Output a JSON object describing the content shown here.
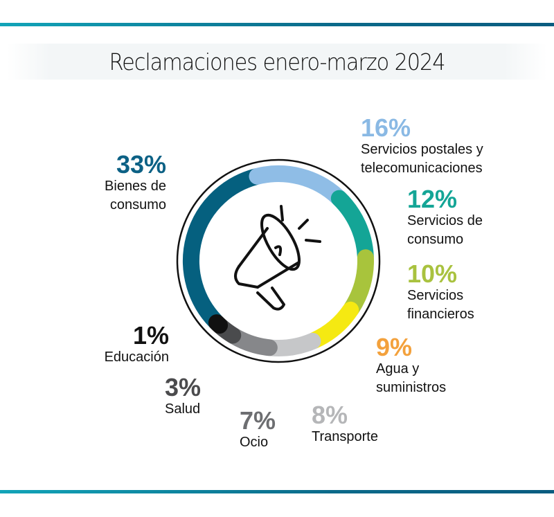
{
  "chart_data": {
    "type": "pie",
    "variant": "donut",
    "title": "Reclamaciones enero-marzo 2024",
    "unit": "%",
    "slices": [
      {
        "label": "Servicios postales y telecomunicaciones",
        "value": 16,
        "pct": "16%",
        "color": "#8fbde6",
        "label_color": "#8ab9e4"
      },
      {
        "label": "Servicios de consumo",
        "value": 12,
        "pct": "12%",
        "color": "#14a596",
        "label_color": "#14a596"
      },
      {
        "label": "Servicios financieros",
        "value": 10,
        "pct": "10%",
        "color": "#a8c43c",
        "label_color": "#a9c23f"
      },
      {
        "label": "Agua y suministros",
        "value": 9,
        "pct": "9%",
        "color": "#f5e912",
        "label_color": "#f3a13c"
      },
      {
        "label": "Transporte",
        "value": 8,
        "pct": "8%",
        "color": "#c6c7c9",
        "label_color": "#b5b6b8"
      },
      {
        "label": "Ocio",
        "value": 7,
        "pct": "7%",
        "color": "#86878a",
        "label_color": "#6d6e71"
      },
      {
        "label": "Salud",
        "value": 3,
        "pct": "3%",
        "color": "#4a4b4d",
        "label_color": "#4b4b4d"
      },
      {
        "label": "Educación",
        "value": 1,
        "pct": "1%",
        "color": "#111111",
        "label_color": "#111111"
      },
      {
        "label": "Bienes de consumo",
        "value": 33,
        "pct": "33%",
        "color": "#05607f",
        "label_color": "#0c6185"
      }
    ],
    "center_icon": "megaphone-icon"
  }
}
